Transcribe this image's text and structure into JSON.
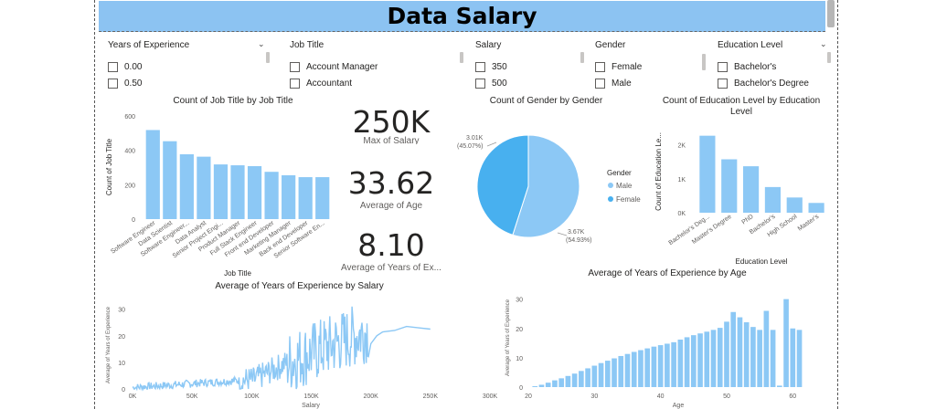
{
  "title": "Data Salary",
  "slicers": [
    {
      "name": "years-of-experience",
      "header": "Years of Experience",
      "options": [
        "0.00",
        "0.50"
      ]
    },
    {
      "name": "job-title",
      "header": "Job Title",
      "options": [
        "Account Manager",
        "Accountant"
      ]
    },
    {
      "name": "salary",
      "header": "Salary",
      "options": [
        "350",
        "500"
      ]
    },
    {
      "name": "gender",
      "header": "Gender",
      "options": [
        "Female",
        "Male"
      ]
    },
    {
      "name": "education-level",
      "header": "Education Level",
      "options": [
        "Bachelor's",
        "Bachelor's Degree"
      ]
    }
  ],
  "kpis": [
    {
      "value": "250K",
      "label": "Max of Salary"
    },
    {
      "value": "33.62",
      "label": "Average of Age"
    },
    {
      "value": "8.10",
      "label": "Average of Years of Ex..."
    }
  ],
  "colors": {
    "bar": "#8cc8f5",
    "dark": "#48b0ef",
    "title": "#8cc3f2"
  },
  "chart_data": [
    {
      "type": "bar",
      "title": "Count of Job Title by Job Title",
      "xlabel": "Job Title",
      "ylabel": "Count of Job Title",
      "ylim": [
        0,
        600
      ],
      "yticks": [
        0,
        200,
        400,
        600
      ],
      "categories": [
        "Software Engineer",
        "Data Scientist",
        "Software Engineer...",
        "Data Analyst",
        "Senior Project Engi...",
        "Product Manager",
        "Full Stack Engineer",
        "Front end Developer",
        "Marketing Manager",
        "Back end Developer",
        "Senior Software En..."
      ],
      "values": [
        518,
        453,
        377,
        363,
        318,
        313,
        308,
        275,
        255,
        244,
        244
      ]
    },
    {
      "type": "pie",
      "title": "Count of Gender by Gender",
      "legend_title": "Gender",
      "legend_position": "right",
      "slices": [
        {
          "name": "Male",
          "value": 3670,
          "label": "3.67K",
          "pct": "(54.93%)"
        },
        {
          "name": "Female",
          "value": 3010,
          "label": "3.01K",
          "pct": "(45.07%)"
        }
      ]
    },
    {
      "type": "bar",
      "title": "Count of Education Level by Education Level",
      "xlabel": "Education Level",
      "ylabel": "Count of Education Le...",
      "ylim": [
        0,
        2500
      ],
      "yticks": [
        0,
        1000,
        2000
      ],
      "ytick_labels": [
        "0K",
        "1K",
        "2K"
      ],
      "categories": [
        "Bachelor's Deg...",
        "Master's Degree",
        "PhD",
        "Bachelor's",
        "High School",
        "Master's"
      ],
      "values": [
        2267,
        1573,
        1368,
        756,
        448,
        288
      ]
    },
    {
      "type": "line",
      "title": "Average of Years of Experience by Salary",
      "xlabel": "Salary",
      "ylabel": "Average of Years of Experience",
      "xlim": [
        0,
        300000
      ],
      "xticks": [
        0,
        50000,
        100000,
        150000,
        200000,
        250000,
        300000
      ],
      "xtick_labels": [
        "0K",
        "50K",
        "100K",
        "150K",
        "200K",
        "250K",
        "300K"
      ],
      "ylim": [
        0,
        33
      ],
      "yticks": [
        0,
        10,
        20,
        30
      ]
    },
    {
      "type": "bar",
      "title": "Average of Years of Experience by Age",
      "xlabel": "Age",
      "ylabel": "Average of Years of Experience",
      "ylim": [
        0,
        33
      ],
      "yticks": [
        0,
        10,
        20,
        30
      ],
      "xlim": [
        20,
        63
      ],
      "xticks": [
        20,
        30,
        40,
        50,
        60
      ],
      "x": [
        21,
        22,
        23,
        24,
        25,
        26,
        27,
        28,
        29,
        30,
        31,
        32,
        33,
        34,
        35,
        36,
        37,
        38,
        39,
        40,
        41,
        42,
        43,
        44,
        45,
        46,
        47,
        48,
        49,
        50,
        51,
        52,
        53,
        54,
        55,
        56,
        57,
        58,
        59,
        60,
        61,
        62
      ],
      "values": [
        0.3,
        0.8,
        1.5,
        2.3,
        3.0,
        3.8,
        4.6,
        5.5,
        6.4,
        7.3,
        8.2,
        9.0,
        9.8,
        10.6,
        11.3,
        12.0,
        12.6,
        13.2,
        13.8,
        14.3,
        14.8,
        15.3,
        16.2,
        17.0,
        17.7,
        18.3,
        18.9,
        19.5,
        20.2,
        22.3,
        25.6,
        23.8,
        22.1,
        20.5,
        19.5,
        26.0,
        19.5,
        0.5,
        30.0,
        20.0,
        19.5,
        0
      ]
    }
  ]
}
